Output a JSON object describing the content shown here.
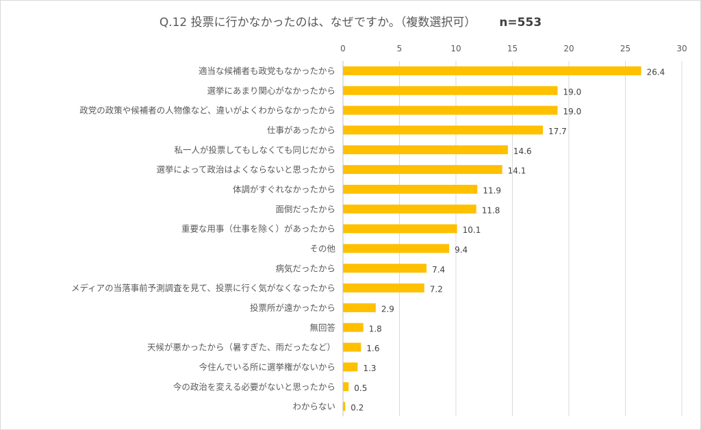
{
  "chart_data": {
    "type": "bar",
    "orientation": "horizontal",
    "title": "Q.12 投票に行かなかったのは、なぜですか。（複数選択可）",
    "subtitle": "n=553",
    "xlim": [
      0,
      30
    ],
    "xticks": [
      0,
      5,
      10,
      15,
      20,
      25,
      30
    ],
    "grid": true,
    "bar_color": "#FFC000",
    "categories": [
      "適当な候補者も政党もなかったから",
      "選挙にあまり関心がなかったから",
      "政党の政策や候補者の人物像など、違いがよくわからなかったから",
      "仕事があったから",
      "私一人が投票してもしなくても同じだから",
      "選挙によって政治はよくならないと思ったから",
      "体調がすぐれなかったから",
      "面倒だったから",
      "重要な用事（仕事を除く）があったから",
      "その他",
      "病気だったから",
      "メディアの当落事前予測調査を見て、投票に行く気がなくなったから",
      "投票所が遠かったから",
      "無回答",
      "天候が悪かったから（暑すぎた、雨だったなど）",
      "今住んでいる所に選挙権がないから",
      "今の政治を変える必要がないと思ったから",
      "わからない"
    ],
    "values": [
      26.4,
      19.0,
      19.0,
      17.7,
      14.6,
      14.1,
      11.9,
      11.8,
      10.1,
      9.4,
      7.4,
      7.2,
      2.9,
      1.8,
      1.6,
      1.3,
      0.5,
      0.2
    ],
    "value_labels": [
      "26.4",
      "19.0",
      "19.0",
      "17.7",
      "14.6",
      "14.1",
      "11.9",
      "11.8",
      "10.1",
      "9.4",
      "7.4",
      "7.2",
      "2.9",
      "1.8",
      "1.6",
      "1.3",
      "0.5",
      "0.2"
    ]
  }
}
